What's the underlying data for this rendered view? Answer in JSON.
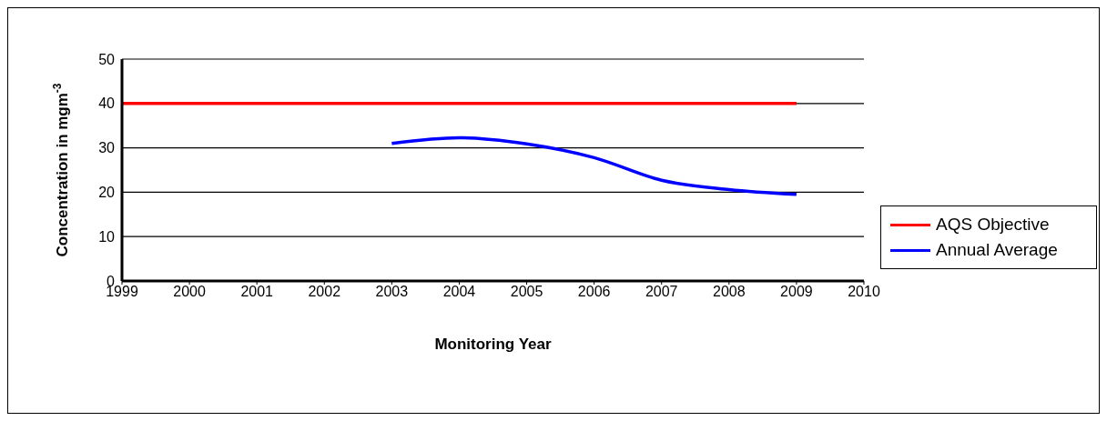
{
  "chart_data": {
    "type": "line",
    "xlabel": "Monitoring Year",
    "ylabel": "Concentration in mgm$^{-3}$",
    "xlim": [
      1999,
      2010
    ],
    "xticks": [
      1999,
      2000,
      2001,
      2002,
      2003,
      2004,
      2005,
      2006,
      2007,
      2008,
      2009,
      2010
    ],
    "ylim": [
      0,
      50
    ],
    "yticks": [
      0,
      10,
      20,
      30,
      40,
      50
    ],
    "grid": "y",
    "legend": "right",
    "marker": "none",
    "line_style": "solid",
    "series": [
      {
        "name": "AQS Objective",
        "color": "#ff0000",
        "x": [
          1999,
          2000,
          2001,
          2002,
          2003,
          2004,
          2005,
          2006,
          2007,
          2008,
          2009
        ],
        "values": [
          40,
          40,
          40,
          40,
          40,
          40,
          40,
          40,
          40,
          40,
          40
        ]
      },
      {
        "name": "Annual Average",
        "color": "#0000ff",
        "x": [
          2003,
          2004,
          2005,
          2006,
          2007,
          2008,
          2009
        ],
        "values": [
          31.0,
          32.3,
          30.9,
          27.8,
          22.7,
          20.6,
          19.5
        ]
      }
    ]
  }
}
